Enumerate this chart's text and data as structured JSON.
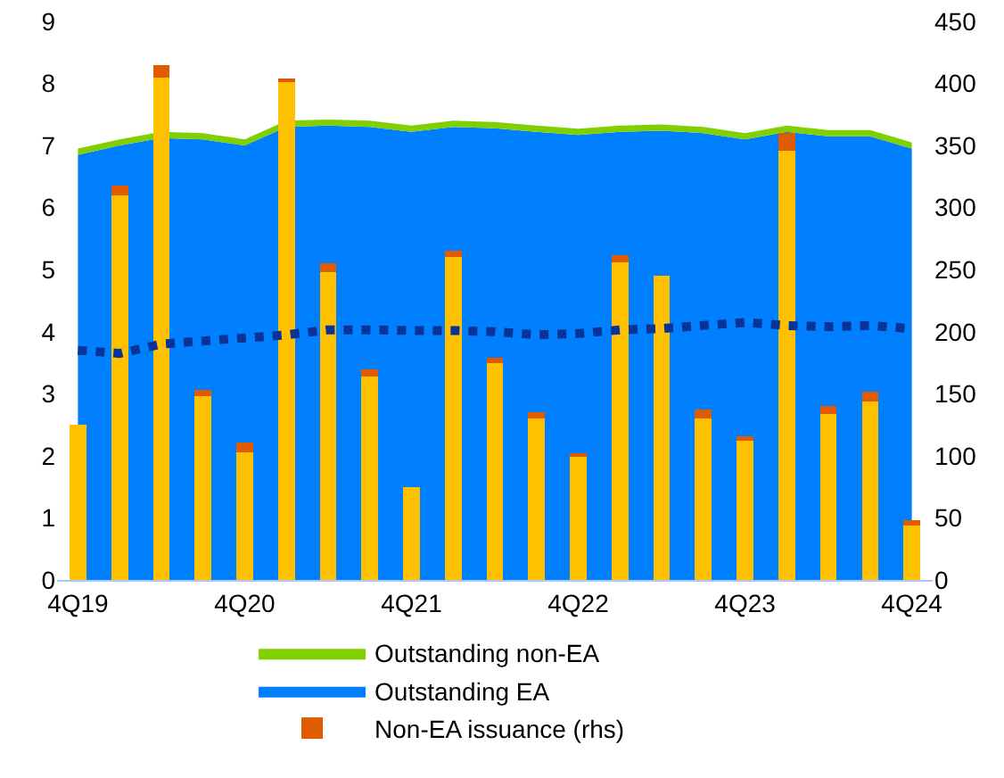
{
  "chart_data": {
    "type": "bar",
    "stacked": true,
    "legend": "bottom",
    "grid": false,
    "line_style": "dotted",
    "categories": [
      "4Q19",
      null,
      null,
      null,
      "4Q20",
      null,
      null,
      null,
      "4Q21",
      null,
      null,
      null,
      "4Q22",
      null,
      null,
      null,
      "4Q23",
      null,
      null,
      null,
      "4Q24"
    ],
    "ylim": [
      0,
      9
    ],
    "yticks": [
      0,
      1,
      2,
      3,
      4,
      5,
      6,
      7,
      8,
      9
    ],
    "y2lim": [
      0,
      450
    ],
    "y2ticks": [
      0,
      50,
      100,
      150,
      200,
      250,
      300,
      350,
      400,
      450
    ],
    "series": [
      {
        "name": "Outstanding EA",
        "type": "area",
        "color": "#0080ff",
        "values": [
          6.85,
          7.0,
          7.12,
          7.1,
          7.0,
          7.3,
          7.32,
          7.3,
          7.22,
          7.3,
          7.28,
          7.22,
          7.17,
          7.22,
          7.24,
          7.2,
          7.1,
          7.22,
          7.15,
          7.15,
          6.95
        ]
      },
      {
        "name": "Outstanding non-EA",
        "type": "area",
        "color": "#80d000",
        "values": [
          0.1,
          0.1,
          0.1,
          0.1,
          0.1,
          0.1,
          0.1,
          0.1,
          0.1,
          0.1,
          0.1,
          0.1,
          0.1,
          0.1,
          0.1,
          0.1,
          0.1,
          0.1,
          0.1,
          0.1,
          0.1
        ]
      },
      {
        "axis": "y2",
        "color": "#ffc000",
        "values": [
          125,
          310,
          405,
          148,
          103,
          402,
          248,
          164,
          75,
          260,
          175,
          130,
          99,
          256,
          245,
          130,
          112,
          346,
          134,
          144,
          44
        ]
      },
      {
        "name": "Non-EA issuance (rhs)",
        "axis": "y2",
        "color": "#e05a00",
        "values": [
          0,
          8,
          10,
          5,
          8,
          2,
          7,
          6,
          0,
          5,
          4,
          5,
          3,
          6,
          0,
          7,
          4,
          14,
          6,
          8,
          4
        ]
      },
      {
        "type": "line",
        "color": "#0a3399",
        "values": [
          3.7,
          3.65,
          3.8,
          3.85,
          3.9,
          3.95,
          4.03,
          4.03,
          4.02,
          4.02,
          4.0,
          3.95,
          3.97,
          4.03,
          4.05,
          4.1,
          4.15,
          4.1,
          4.08,
          4.1,
          4.05
        ]
      }
    ]
  }
}
